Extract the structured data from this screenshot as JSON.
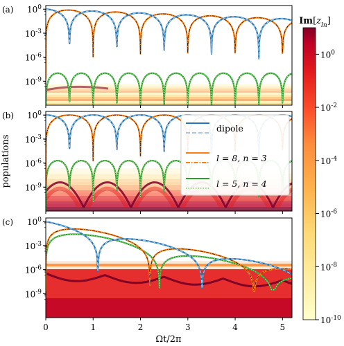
{
  "chart_data": {
    "type": "line",
    "xlabel": "Ωt/2π",
    "ylabel": "populations",
    "xlim": [
      0,
      5.2
    ],
    "ylim": [
      1e-12,
      3
    ],
    "yscale": "log",
    "xticks": [
      "0",
      "1",
      "2",
      "3",
      "4",
      "5"
    ],
    "yticks": [
      "10^0",
      "10^-3",
      "10^-6",
      "10^-9"
    ],
    "panels": [
      {
        "label": "(a)",
        "rabi_period": 1.0,
        "decay": 0.55,
        "g_floor": 1e-08,
        "heat_rows": 2
      },
      {
        "label": "(b)",
        "rabi_period": 1.0,
        "decay": 0.0,
        "g_floor": 2e-06,
        "heat_rows": 6
      },
      {
        "label": "(c)",
        "rabi_period": 2.2,
        "decay": 2.6,
        "g_floor": 0.0001,
        "heat_rows": 14
      }
    ],
    "legend": {
      "placement": "upper-right of panel (b)",
      "entries": [
        {
          "text": "dipole",
          "color": "#1f77b4",
          "style": "solid"
        },
        {
          "text": "",
          "color": "#aec7e8",
          "style": "dashed"
        },
        {
          "text": "l = 8, n = 3",
          "color": "#ff7f0e",
          "style": "solid"
        },
        {
          "text": "",
          "color": "#ff7f0e",
          "style": "dashdot"
        },
        {
          "text": "l = 5, n = 4",
          "color": "#2ca02c",
          "style": "solid"
        },
        {
          "text": "",
          "color": "#98df8a",
          "style": "dotted"
        }
      ]
    },
    "colorbar": {
      "label": "Im[z_ln]",
      "scale": "log",
      "range": [
        1e-10,
        10
      ],
      "ticks": [
        "10^0",
        "10^-2",
        "10^-4",
        "10^-6",
        "10^-8",
        "10^-10"
      ],
      "colormap": "YlOrRd"
    },
    "series_colors": {
      "dipole": "#1f77b4",
      "dipole_ref": "#aec7e8",
      "l8n3": "#ff7f0e",
      "l5n4": "#2ca02c"
    }
  }
}
